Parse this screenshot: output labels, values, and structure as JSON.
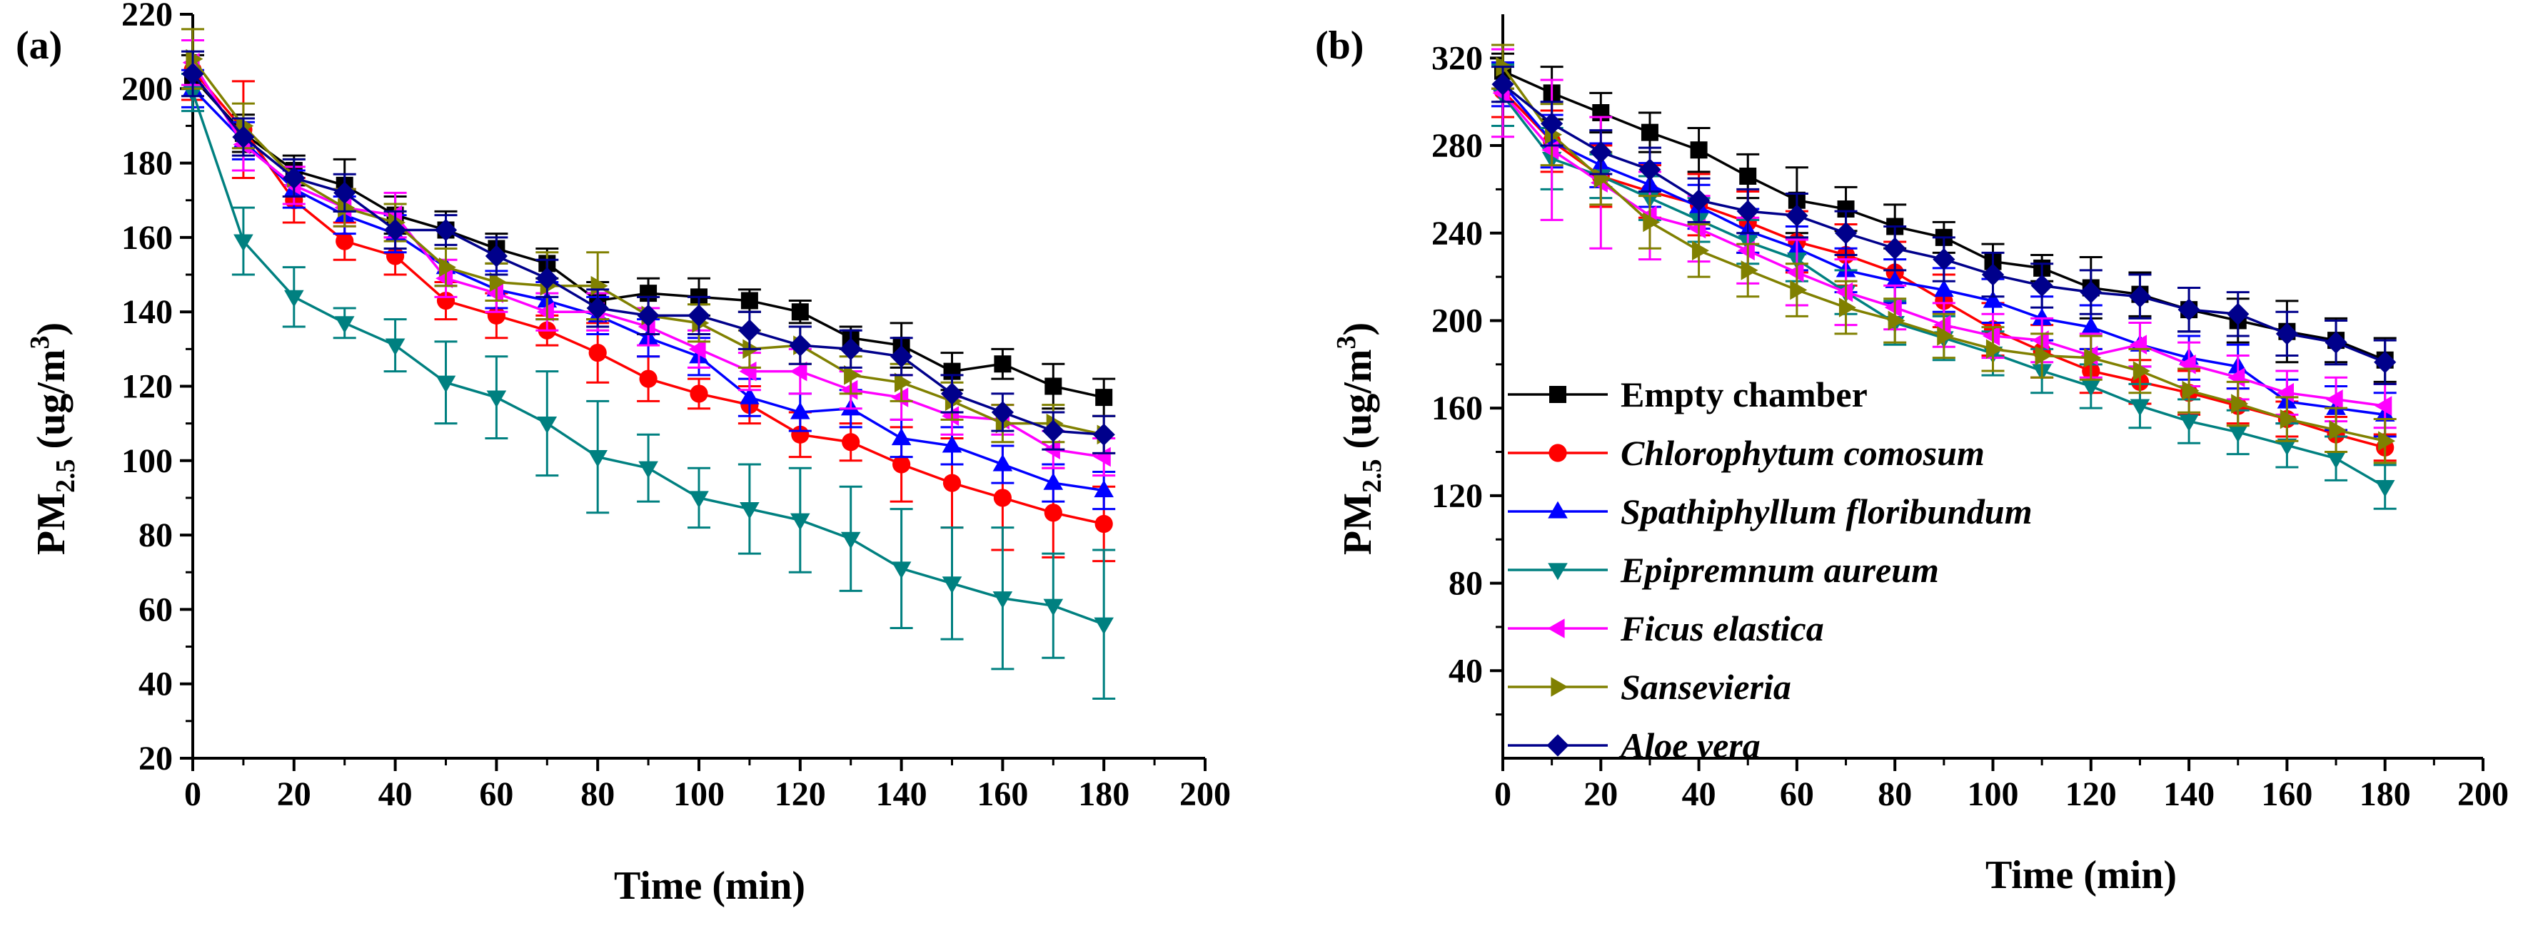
{
  "chart_data": [
    {
      "type": "line",
      "panel_label": "(a)",
      "title": "",
      "xlabel": "Time (min)",
      "ylabel_main": "PM",
      "ylabel_sub": "2.5",
      "ylabel_unit": " (ug/m",
      "ylabel_sup": "3",
      "ylabel_close": ")",
      "xlim": [
        0,
        200
      ],
      "ylim": [
        20,
        220
      ],
      "xticks": [
        "0",
        "20",
        "40",
        "60",
        "80",
        "100",
        "120",
        "140",
        "160",
        "180",
        "200"
      ],
      "yticks": [
        "20",
        "40",
        "60",
        "80",
        "100",
        "120",
        "140",
        "160",
        "180",
        "200",
        "220"
      ],
      "grid": false,
      "legend": "none",
      "x": [
        0,
        10,
        20,
        30,
        40,
        50,
        60,
        70,
        80,
        90,
        100,
        110,
        120,
        130,
        140,
        150,
        160,
        170,
        180
      ],
      "series": [
        {
          "color": "#000000",
          "marker": "square",
          "values": [
            203,
            188,
            178,
            174,
            166,
            162,
            157,
            153,
            143,
            145,
            144,
            143,
            140,
            133,
            131,
            124,
            126,
            120,
            117
          ],
          "errors": [
            6,
            5,
            4,
            7,
            5,
            5,
            4,
            4,
            5,
            4,
            5,
            3,
            3,
            3,
            6,
            5,
            4,
            6,
            5
          ]
        },
        {
          "color": "#ff0000",
          "marker": "circle",
          "values": [
            205,
            189,
            170,
            159,
            155,
            143,
            139,
            135,
            129,
            122,
            118,
            115,
            107,
            105,
            99,
            94,
            90,
            86,
            83
          ],
          "errors": [
            8,
            13,
            6,
            5,
            5,
            5,
            6,
            4,
            8,
            6,
            4,
            5,
            6,
            5,
            10,
            12,
            14,
            12,
            10
          ]
        },
        {
          "color": "#0000ff",
          "marker": "triangle-up",
          "values": [
            200,
            186,
            173,
            166,
            161,
            152,
            146,
            143,
            139,
            133,
            128,
            117,
            113,
            114,
            106,
            104,
            99,
            94,
            92
          ],
          "errors": [
            5,
            5,
            5,
            5,
            5,
            5,
            5,
            5,
            5,
            5,
            5,
            5,
            5,
            5,
            5,
            5,
            5,
            5,
            5
          ]
        },
        {
          "color": "#008080",
          "marker": "triangle-down",
          "values": [
            199,
            159,
            144,
            137,
            131,
            121,
            117,
            110,
            101,
            98,
            90,
            87,
            84,
            79,
            71,
            67,
            63,
            61,
            56
          ],
          "errors": [
            5,
            9,
            8,
            4,
            7,
            11,
            11,
            14,
            15,
            9,
            8,
            12,
            14,
            14,
            16,
            15,
            19,
            14,
            20
          ]
        },
        {
          "color": "#ff00ff",
          "marker": "triangle-left",
          "values": [
            207,
            185,
            174,
            168,
            166,
            149,
            145,
            140,
            140,
            136,
            130,
            124,
            124,
            119,
            117,
            112,
            111,
            103,
            101
          ],
          "errors": [
            6,
            7,
            5,
            5,
            6,
            5,
            5,
            5,
            5,
            5,
            5,
            5,
            6,
            5,
            6,
            5,
            4,
            5,
            5
          ]
        },
        {
          "color": "#808000",
          "marker": "triangle-right",
          "values": [
            208,
            190,
            176,
            168,
            164,
            152,
            148,
            147,
            147,
            139,
            137,
            130,
            131,
            123,
            121,
            116,
            110,
            110,
            107
          ],
          "errors": [
            8,
            6,
            5,
            5,
            5,
            5,
            5,
            9,
            9,
            5,
            5,
            5,
            5,
            5,
            5,
            5,
            5,
            5,
            5
          ]
        },
        {
          "color": "#00008b",
          "marker": "diamond",
          "values": [
            204,
            187,
            176,
            172,
            162,
            162,
            155,
            149,
            141,
            139,
            139,
            135,
            131,
            130,
            128,
            118,
            113,
            108,
            107
          ],
          "errors": [
            6,
            5,
            5,
            5,
            5,
            4,
            5,
            5,
            5,
            5,
            5,
            5,
            5,
            5,
            5,
            5,
            5,
            5,
            5
          ]
        }
      ]
    },
    {
      "type": "line",
      "panel_label": "(b)",
      "title": "",
      "xlabel": "Time (min)",
      "ylabel_main": "PM",
      "ylabel_sub": "2.5",
      "ylabel_unit": " (ug/m",
      "ylabel_sup": "3",
      "ylabel_close": ")",
      "xlim": [
        0,
        200
      ],
      "ylim": [
        0,
        340
      ],
      "xticks": [
        "0",
        "20",
        "40",
        "60",
        "80",
        "100",
        "120",
        "140",
        "160",
        "180",
        "200"
      ],
      "yticks": [
        "40",
        "80",
        "120",
        "160",
        "200",
        "240",
        "280",
        "320"
      ],
      "grid": false,
      "legend": "center-left",
      "x": [
        0,
        10,
        20,
        30,
        40,
        50,
        60,
        70,
        80,
        90,
        100,
        110,
        120,
        130,
        140,
        150,
        160,
        170,
        180
      ],
      "series": [
        {
          "name": "Empty chamber",
          "italic": false,
          "color": "#000000",
          "marker": "square",
          "values": [
            314,
            304,
            295,
            286,
            278,
            266,
            255,
            251,
            243,
            238,
            227,
            224,
            215,
            212,
            205,
            200,
            195,
            191,
            182
          ],
          "errors": [
            8,
            12,
            9,
            9,
            10,
            10,
            15,
            10,
            10,
            7,
            8,
            6,
            14,
            10,
            10,
            10,
            14,
            10,
            10
          ]
        },
        {
          "name": "Chlorophytum comosum",
          "italic": true,
          "color": "#ff0000",
          "marker": "circle",
          "values": [
            305,
            282,
            266,
            259,
            253,
            245,
            236,
            230,
            222,
            209,
            196,
            186,
            177,
            172,
            167,
            161,
            155,
            148,
            142
          ],
          "errors": [
            12,
            14,
            14,
            12,
            14,
            14,
            14,
            14,
            14,
            12,
            12,
            12,
            10,
            10,
            10,
            8,
            8,
            8,
            6
          ]
        },
        {
          "name": "Spathiphyllum floribundum",
          "italic": true,
          "color": "#0000ff",
          "marker": "triangle-up",
          "values": [
            308,
            282,
            271,
            262,
            252,
            241,
            233,
            223,
            218,
            214,
            209,
            201,
            197,
            189,
            183,
            179,
            163,
            160,
            157
          ],
          "errors": [
            10,
            12,
            10,
            10,
            10,
            10,
            10,
            10,
            10,
            10,
            10,
            10,
            10,
            10,
            10,
            10,
            10,
            10,
            10
          ]
        },
        {
          "name": "Epipremnum aureum",
          "italic": true,
          "color": "#008080",
          "marker": "triangle-down",
          "values": [
            303,
            274,
            266,
            256,
            246,
            236,
            228,
            213,
            199,
            192,
            185,
            177,
            170,
            161,
            154,
            149,
            143,
            137,
            124
          ],
          "errors": [
            14,
            14,
            10,
            10,
            10,
            10,
            10,
            10,
            10,
            10,
            10,
            10,
            10,
            10,
            10,
            10,
            10,
            10,
            10
          ]
        },
        {
          "name": "Ficus elastica",
          "italic": true,
          "color": "#ff00ff",
          "marker": "triangle-left",
          "values": [
            304,
            278,
            263,
            248,
            242,
            232,
            222,
            213,
            206,
            198,
            193,
            191,
            184,
            189,
            180,
            174,
            167,
            164,
            161
          ],
          "errors": [
            20,
            32,
            30,
            20,
            15,
            15,
            15,
            15,
            10,
            10,
            10,
            10,
            10,
            10,
            10,
            10,
            10,
            10,
            10
          ]
        },
        {
          "name": "Sansevieria",
          "italic": true,
          "color": "#808000",
          "marker": "triangle-right",
          "values": [
            316,
            285,
            265,
            245,
            232,
            223,
            214,
            206,
            200,
            193,
            187,
            184,
            183,
            177,
            168,
            162,
            155,
            150,
            145
          ],
          "errors": [
            10,
            14,
            12,
            12,
            12,
            12,
            12,
            12,
            10,
            10,
            10,
            10,
            10,
            10,
            10,
            10,
            10,
            10,
            10
          ]
        },
        {
          "name": "Aloe vera",
          "italic": true,
          "color": "#00008b",
          "marker": "diamond",
          "values": [
            308,
            290,
            277,
            269,
            255,
            250,
            248,
            240,
            233,
            228,
            221,
            216,
            213,
            211,
            205,
            203,
            194,
            190,
            181
          ],
          "errors": [
            8,
            10,
            10,
            10,
            10,
            10,
            10,
            10,
            10,
            10,
            10,
            10,
            10,
            10,
            10,
            10,
            10,
            10,
            10
          ]
        }
      ]
    }
  ]
}
